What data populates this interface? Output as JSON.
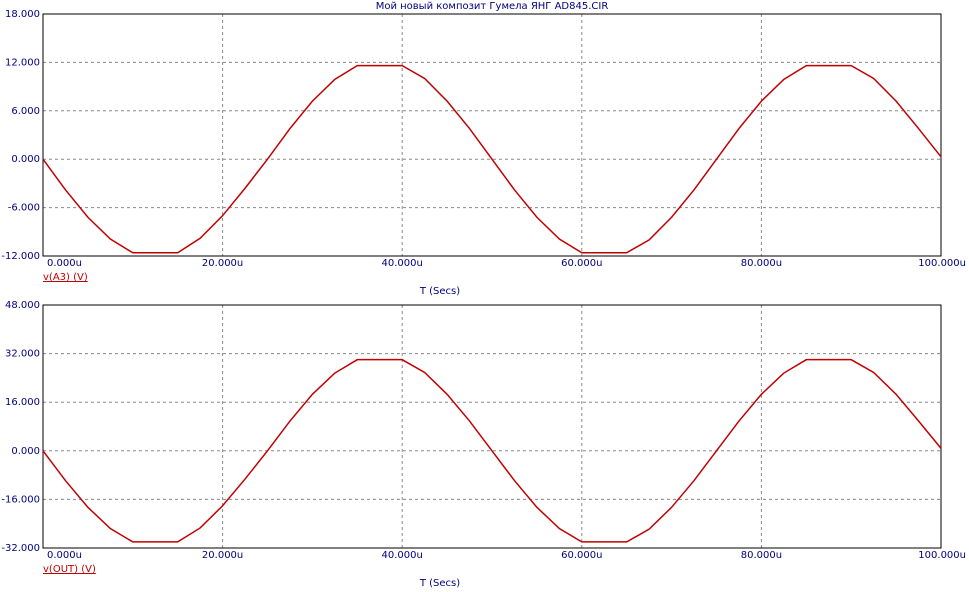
{
  "chart_data": [
    {
      "type": "line",
      "title": "Мой новый композит Гумела ЯНГ AD845.CIR",
      "xlabel": "T (Secs)",
      "x": [
        0,
        2.5,
        5,
        7.5,
        10,
        12.5,
        15,
        17.5,
        20,
        22.5,
        25,
        27.5,
        30,
        32.5,
        35,
        37.5,
        40,
        42.5,
        45,
        47.5,
        50,
        52.5,
        55,
        57.5,
        60,
        62.5,
        65,
        67.5,
        70,
        72.5,
        75,
        77.5,
        80,
        82.5,
        85,
        87.5,
        90,
        92.5,
        95,
        97.5,
        100
      ],
      "series": [
        {
          "name": "v(A3) (V)",
          "color": "#c00000",
          "values": [
            0,
            -3.8,
            -7.2,
            -9.9,
            -11.6,
            -11.6,
            -11.6,
            -9.8,
            -7,
            -3.6,
            0,
            3.8,
            7.2,
            9.9,
            11.6,
            11.6,
            11.6,
            10,
            7.2,
            3.8,
            0,
            -3.8,
            -7.2,
            -9.9,
            -11.6,
            -11.6,
            -11.6,
            -10,
            -7.2,
            -3.8,
            0,
            3.8,
            7.2,
            9.9,
            11.6,
            11.6,
            11.6,
            10,
            7.2,
            3.8,
            0.3
          ]
        }
      ],
      "xlim": [
        0,
        100
      ],
      "xticks": [
        {
          "value": 0,
          "label": "0.000u"
        },
        {
          "value": 20,
          "label": "20.000u"
        },
        {
          "value": 40,
          "label": "40.000u"
        },
        {
          "value": 60,
          "label": "60.000u"
        },
        {
          "value": 80,
          "label": "80.000u"
        },
        {
          "value": 100,
          "label": "100.000u"
        }
      ],
      "ylim": [
        -12,
        18
      ],
      "yticks": [
        {
          "value": 18,
          "label": "18.000"
        },
        {
          "value": 12,
          "label": "12.000"
        },
        {
          "value": 6,
          "label": "6.000"
        },
        {
          "value": 0,
          "label": "0.000"
        },
        {
          "value": -6,
          "label": "-6.000"
        },
        {
          "value": -12,
          "label": "-12.000"
        }
      ],
      "grid": true
    },
    {
      "type": "line",
      "xlabel": "T (Secs)",
      "x": [
        0,
        2.5,
        5,
        7.5,
        10,
        12.5,
        15,
        17.5,
        20,
        22.5,
        25,
        27.5,
        30,
        32.5,
        35,
        37.5,
        40,
        42.5,
        45,
        47.5,
        50,
        52.5,
        55,
        57.5,
        60,
        62.5,
        65,
        67.5,
        70,
        72.5,
        75,
        77.5,
        80,
        82.5,
        85,
        87.5,
        90,
        92.5,
        95,
        97.5,
        100
      ],
      "series": [
        {
          "name": "v(OUT) (V)",
          "color": "#c00000",
          "values": [
            0,
            -9.8,
            -18.6,
            -25.6,
            -30,
            -30,
            -30,
            -25.4,
            -18.1,
            -9.3,
            0,
            9.8,
            18.6,
            25.6,
            30,
            30,
            30,
            25.8,
            18.6,
            9.8,
            0,
            -9.8,
            -18.6,
            -25.6,
            -30,
            -30,
            -30,
            -25.8,
            -18.6,
            -9.8,
            0,
            9.8,
            18.6,
            25.6,
            30,
            30,
            30,
            25.8,
            18.6,
            9.8,
            0.8
          ]
        }
      ],
      "xlim": [
        0,
        100
      ],
      "xticks": [
        {
          "value": 0,
          "label": "0.000u"
        },
        {
          "value": 20,
          "label": "20.000u"
        },
        {
          "value": 40,
          "label": "40.000u"
        },
        {
          "value": 60,
          "label": "60.000u"
        },
        {
          "value": 80,
          "label": "80.000u"
        },
        {
          "value": 100,
          "label": "100.000u"
        }
      ],
      "ylim": [
        -32,
        48
      ],
      "yticks": [
        {
          "value": 48,
          "label": "48.000"
        },
        {
          "value": 32,
          "label": "32.000"
        },
        {
          "value": 16,
          "label": "16.000"
        },
        {
          "value": 0,
          "label": "0.000"
        },
        {
          "value": -16,
          "label": "-16.000"
        },
        {
          "value": -32,
          "label": "-32.000"
        }
      ],
      "grid": true
    }
  ]
}
